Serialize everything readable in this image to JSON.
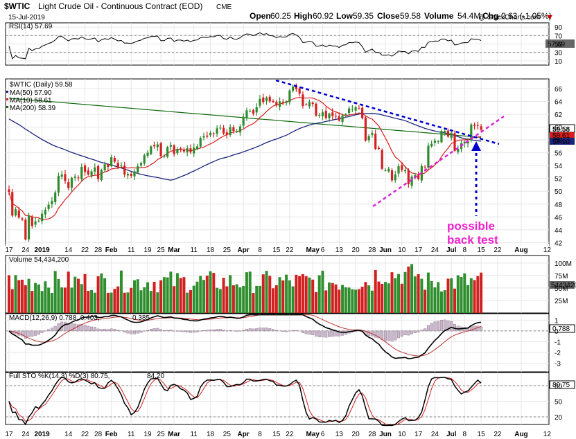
{
  "header": {
    "symbol": "$WTIC",
    "instrument": "Light Crude Oil - Continuous Contract (EOD)",
    "exchange": "CME",
    "date": "15-Jul-2019",
    "open_label": "Open",
    "open": "60.25",
    "high_label": "High",
    "high": "60.92",
    "low_label": "Low",
    "low": "59.35",
    "close_label": "Close",
    "close": "59.58",
    "volume_label": "Volume",
    "volume": "54.4M",
    "chg_label": "Chg",
    "chg": "-0.63 (-1.05%)",
    "watermark": "@ StockCharts.com"
  },
  "colors": {
    "up": "#2e8b2e",
    "down": "#d42020",
    "ma50": "#1a237e",
    "ma10": "#d81b1b",
    "ma200": "#0d6b0d",
    "trendline": "#0000cc",
    "support": "#dd22dd",
    "annotation": "#ee22cc",
    "volume_up": "#2f8f2f",
    "volume_down": "#d21f1f"
  },
  "x_axis": {
    "labels": [
      "17",
      "24",
      "2019",
      "14",
      "22",
      "28",
      "Feb",
      "11",
      "19",
      "25",
      "Mar",
      "11",
      "18",
      "25",
      "Apr",
      "8",
      "15",
      "22",
      "May",
      "6",
      "13",
      "20",
      "28",
      "Jun",
      "10",
      "17",
      "24",
      "Jul",
      "8",
      "15",
      "22",
      "Aug",
      "12"
    ],
    "bold": [
      "2019",
      "Feb",
      "Mar",
      "Apr",
      "May",
      "Jun",
      "Jul",
      "Aug"
    ]
  },
  "panels": {
    "rsi": {
      "legend": "RSI(14) 57.69",
      "ticks": [
        "90",
        "70",
        "50",
        "30",
        "10"
      ],
      "value_badge": "57.69"
    },
    "price": {
      "legend_symbol": "$WTIC (Daily) 59.58",
      "legend_ma50": "MA(50) 57.90",
      "legend_ma10": "MA(10) 58.61",
      "legend_ma200": "MA(200) 58.39",
      "ticks": [
        "66",
        "64",
        "62",
        "60",
        "58",
        "56",
        "54",
        "52",
        "50",
        "48",
        "46",
        "44",
        "42"
      ],
      "badge_close": "59.58",
      "badge_ma10": "58.61",
      "badge_ma50": "57.90"
    },
    "volume": {
      "legend": "Volume 54,434,200",
      "ticks": [
        "100M",
        "75M",
        "50M",
        "25M"
      ],
      "value_badge": "54434200"
    },
    "macd": {
      "legend_main": "MACD(12,26,9) 0.788, 0.403, ",
      "legend_hist": "0.385",
      "ticks": [
        "1",
        "0",
        "-1",
        "-2",
        "-3"
      ],
      "value_badge": "0.788"
    },
    "sto": {
      "legend_main": "Full STO %K(14,3) %D(3) 80.75, ",
      "legend_d": "84.20",
      "ticks": [
        "80",
        "50",
        "20"
      ],
      "value_badge": "80.75"
    }
  },
  "annotation": {
    "line1": "possible",
    "line2": "back test"
  },
  "chart_data": [
    {
      "type": "candlestick",
      "title": "$WTIC (Daily) 59.58",
      "ylim": [
        41.5,
        67.5
      ],
      "x": [
        "2018-12-17",
        "2018-12-18",
        "2018-12-19",
        "2018-12-20",
        "2018-12-21",
        "2018-12-24",
        "2018-12-26",
        "2018-12-27",
        "2018-12-28",
        "2018-12-31",
        "2019-01-02",
        "2019-01-03",
        "2019-01-04",
        "2019-01-07",
        "2019-01-08",
        "2019-01-09",
        "2019-01-10",
        "2019-01-11",
        "2019-01-14",
        "2019-01-15",
        "2019-01-16",
        "2019-01-17",
        "2019-01-18",
        "2019-01-22",
        "2019-01-23",
        "2019-01-24",
        "2019-01-25",
        "2019-01-28",
        "2019-01-29",
        "2019-01-30",
        "2019-01-31",
        "2019-02-01",
        "2019-02-04",
        "2019-02-05",
        "2019-02-06",
        "2019-02-07",
        "2019-02-08",
        "2019-02-11",
        "2019-02-12",
        "2019-02-13",
        "2019-02-14",
        "2019-02-15",
        "2019-02-19",
        "2019-02-20",
        "2019-02-21",
        "2019-02-22",
        "2019-02-25",
        "2019-02-26",
        "2019-02-27",
        "2019-02-28",
        "2019-03-01",
        "2019-03-04",
        "2019-03-05",
        "2019-03-06",
        "2019-03-07",
        "2019-03-08",
        "2019-03-11",
        "2019-03-12",
        "2019-03-13",
        "2019-03-14",
        "2019-03-15",
        "2019-03-18",
        "2019-03-19",
        "2019-03-20",
        "2019-03-21",
        "2019-03-22",
        "2019-03-25",
        "2019-03-26",
        "2019-03-27",
        "2019-03-28",
        "2019-03-29",
        "2019-04-01",
        "2019-04-02",
        "2019-04-03",
        "2019-04-04",
        "2019-04-05",
        "2019-04-08",
        "2019-04-09",
        "2019-04-10",
        "2019-04-11",
        "2019-04-12",
        "2019-04-15",
        "2019-04-16",
        "2019-04-17",
        "2019-04-18",
        "2019-04-22",
        "2019-04-23",
        "2019-04-24",
        "2019-04-25",
        "2019-04-26",
        "2019-04-29",
        "2019-04-30",
        "2019-05-01",
        "2019-05-02",
        "2019-05-03",
        "2019-05-06",
        "2019-05-07",
        "2019-05-08",
        "2019-05-09",
        "2019-05-10",
        "2019-05-13",
        "2019-05-14",
        "2019-05-15",
        "2019-05-16",
        "2019-05-17",
        "2019-05-20",
        "2019-05-21",
        "2019-05-22",
        "2019-05-23",
        "2019-05-24",
        "2019-05-28",
        "2019-05-29",
        "2019-05-30",
        "2019-05-31",
        "2019-06-03",
        "2019-06-04",
        "2019-06-05",
        "2019-06-06",
        "2019-06-07",
        "2019-06-10",
        "2019-06-11",
        "2019-06-12",
        "2019-06-13",
        "2019-06-14",
        "2019-06-17",
        "2019-06-18",
        "2019-06-19",
        "2019-06-20",
        "2019-06-21",
        "2019-06-24",
        "2019-06-25",
        "2019-06-26",
        "2019-06-27",
        "2019-06-28",
        "2019-07-01",
        "2019-07-02",
        "2019-07-03",
        "2019-07-05",
        "2019-07-08",
        "2019-07-09",
        "2019-07-10",
        "2019-07-11",
        "2019-07-12",
        "2019-07-15"
      ],
      "close": [
        49.9,
        46.2,
        47.2,
        45.9,
        45.6,
        42.5,
        46.2,
        44.6,
        45.3,
        45.4,
        46.5,
        47.1,
        47.9,
        48.5,
        49.8,
        52.4,
        52.6,
        51.6,
        50.5,
        52.1,
        52.3,
        52.1,
        53.8,
        53.0,
        52.6,
        53.1,
        53.7,
        51.9,
        53.3,
        54.2,
        53.8,
        55.3,
        54.6,
        53.7,
        54.0,
        52.6,
        52.7,
        52.4,
        53.1,
        53.9,
        54.4,
        55.6,
        56.0,
        57.0,
        57.0,
        57.3,
        55.5,
        55.5,
        56.9,
        57.2,
        55.8,
        56.6,
        56.6,
        56.2,
        56.7,
        56.1,
        56.8,
        57.0,
        58.3,
        58.6,
        58.5,
        59.1,
        59.0,
        59.8,
        59.9,
        59.0,
        58.8,
        60.0,
        59.4,
        59.3,
        60.1,
        61.6,
        62.6,
        62.5,
        62.1,
        63.1,
        64.4,
        63.9,
        64.6,
        64.0,
        63.9,
        63.4,
        64.0,
        63.8,
        64.0,
        65.7,
        66.3,
        65.9,
        65.2,
        63.3,
        63.5,
        63.9,
        63.6,
        61.8,
        61.9,
        62.3,
        61.4,
        62.1,
        61.7,
        61.7,
        61.0,
        61.8,
        62.0,
        62.9,
        62.8,
        63.1,
        62.9,
        61.4,
        57.9,
        58.6,
        59.1,
        56.6,
        56.6,
        53.5,
        53.3,
        53.5,
        51.7,
        52.6,
        53.9,
        53.3,
        53.3,
        51.1,
        52.3,
        52.5,
        51.9,
        53.9,
        53.8,
        57.1,
        57.4,
        57.9,
        57.8,
        59.4,
        59.4,
        58.5,
        59.1,
        56.3,
        56.6,
        57.5,
        57.7,
        57.8,
        60.4,
        60.2,
        60.2,
        59.58
      ]
    }
  ]
}
